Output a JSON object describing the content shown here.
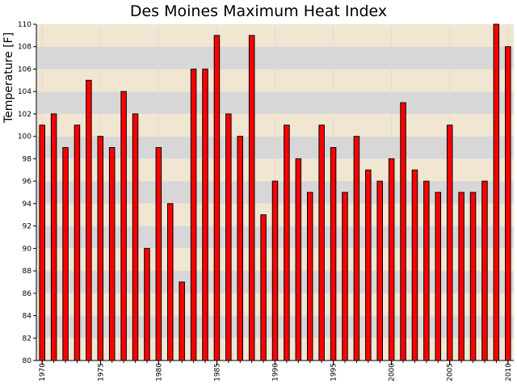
{
  "chart_data": {
    "type": "bar",
    "title": "Des Moines Maximum Heat Index",
    "xlabel": "",
    "ylabel": "Temperature [F]",
    "ylim": [
      80,
      110
    ],
    "y_ticks": [
      80,
      82,
      84,
      86,
      88,
      90,
      92,
      94,
      96,
      98,
      100,
      102,
      104,
      106,
      108,
      110
    ],
    "x_tick_labels": [
      "1970",
      "1975",
      "1980",
      "1985",
      "1990",
      "1995",
      "2000",
      "2005",
      "2010"
    ],
    "categories": [
      1970,
      1971,
      1972,
      1973,
      1974,
      1975,
      1976,
      1977,
      1978,
      1979,
      1980,
      1981,
      1982,
      1983,
      1984,
      1985,
      1986,
      1987,
      1988,
      1989,
      1990,
      1991,
      1992,
      1993,
      1994,
      1995,
      1996,
      1997,
      1998,
      1999,
      2000,
      2001,
      2002,
      2003,
      2004,
      2005,
      2006,
      2007,
      2008,
      2009,
      2010
    ],
    "values": [
      101,
      102,
      99,
      101,
      105,
      100,
      99,
      104,
      102,
      90,
      99,
      94,
      87,
      106,
      106,
      109,
      102,
      100,
      109,
      93,
      96,
      101,
      98,
      95,
      101,
      99,
      95,
      100,
      97,
      96,
      98,
      103,
      97,
      96,
      95,
      101,
      95,
      95,
      96,
      110,
      108
    ],
    "bar_color": "#ff0000",
    "band_colors": [
      "#f0e6d2",
      "#d7d7d7"
    ],
    "grid": true,
    "legend": false
  }
}
